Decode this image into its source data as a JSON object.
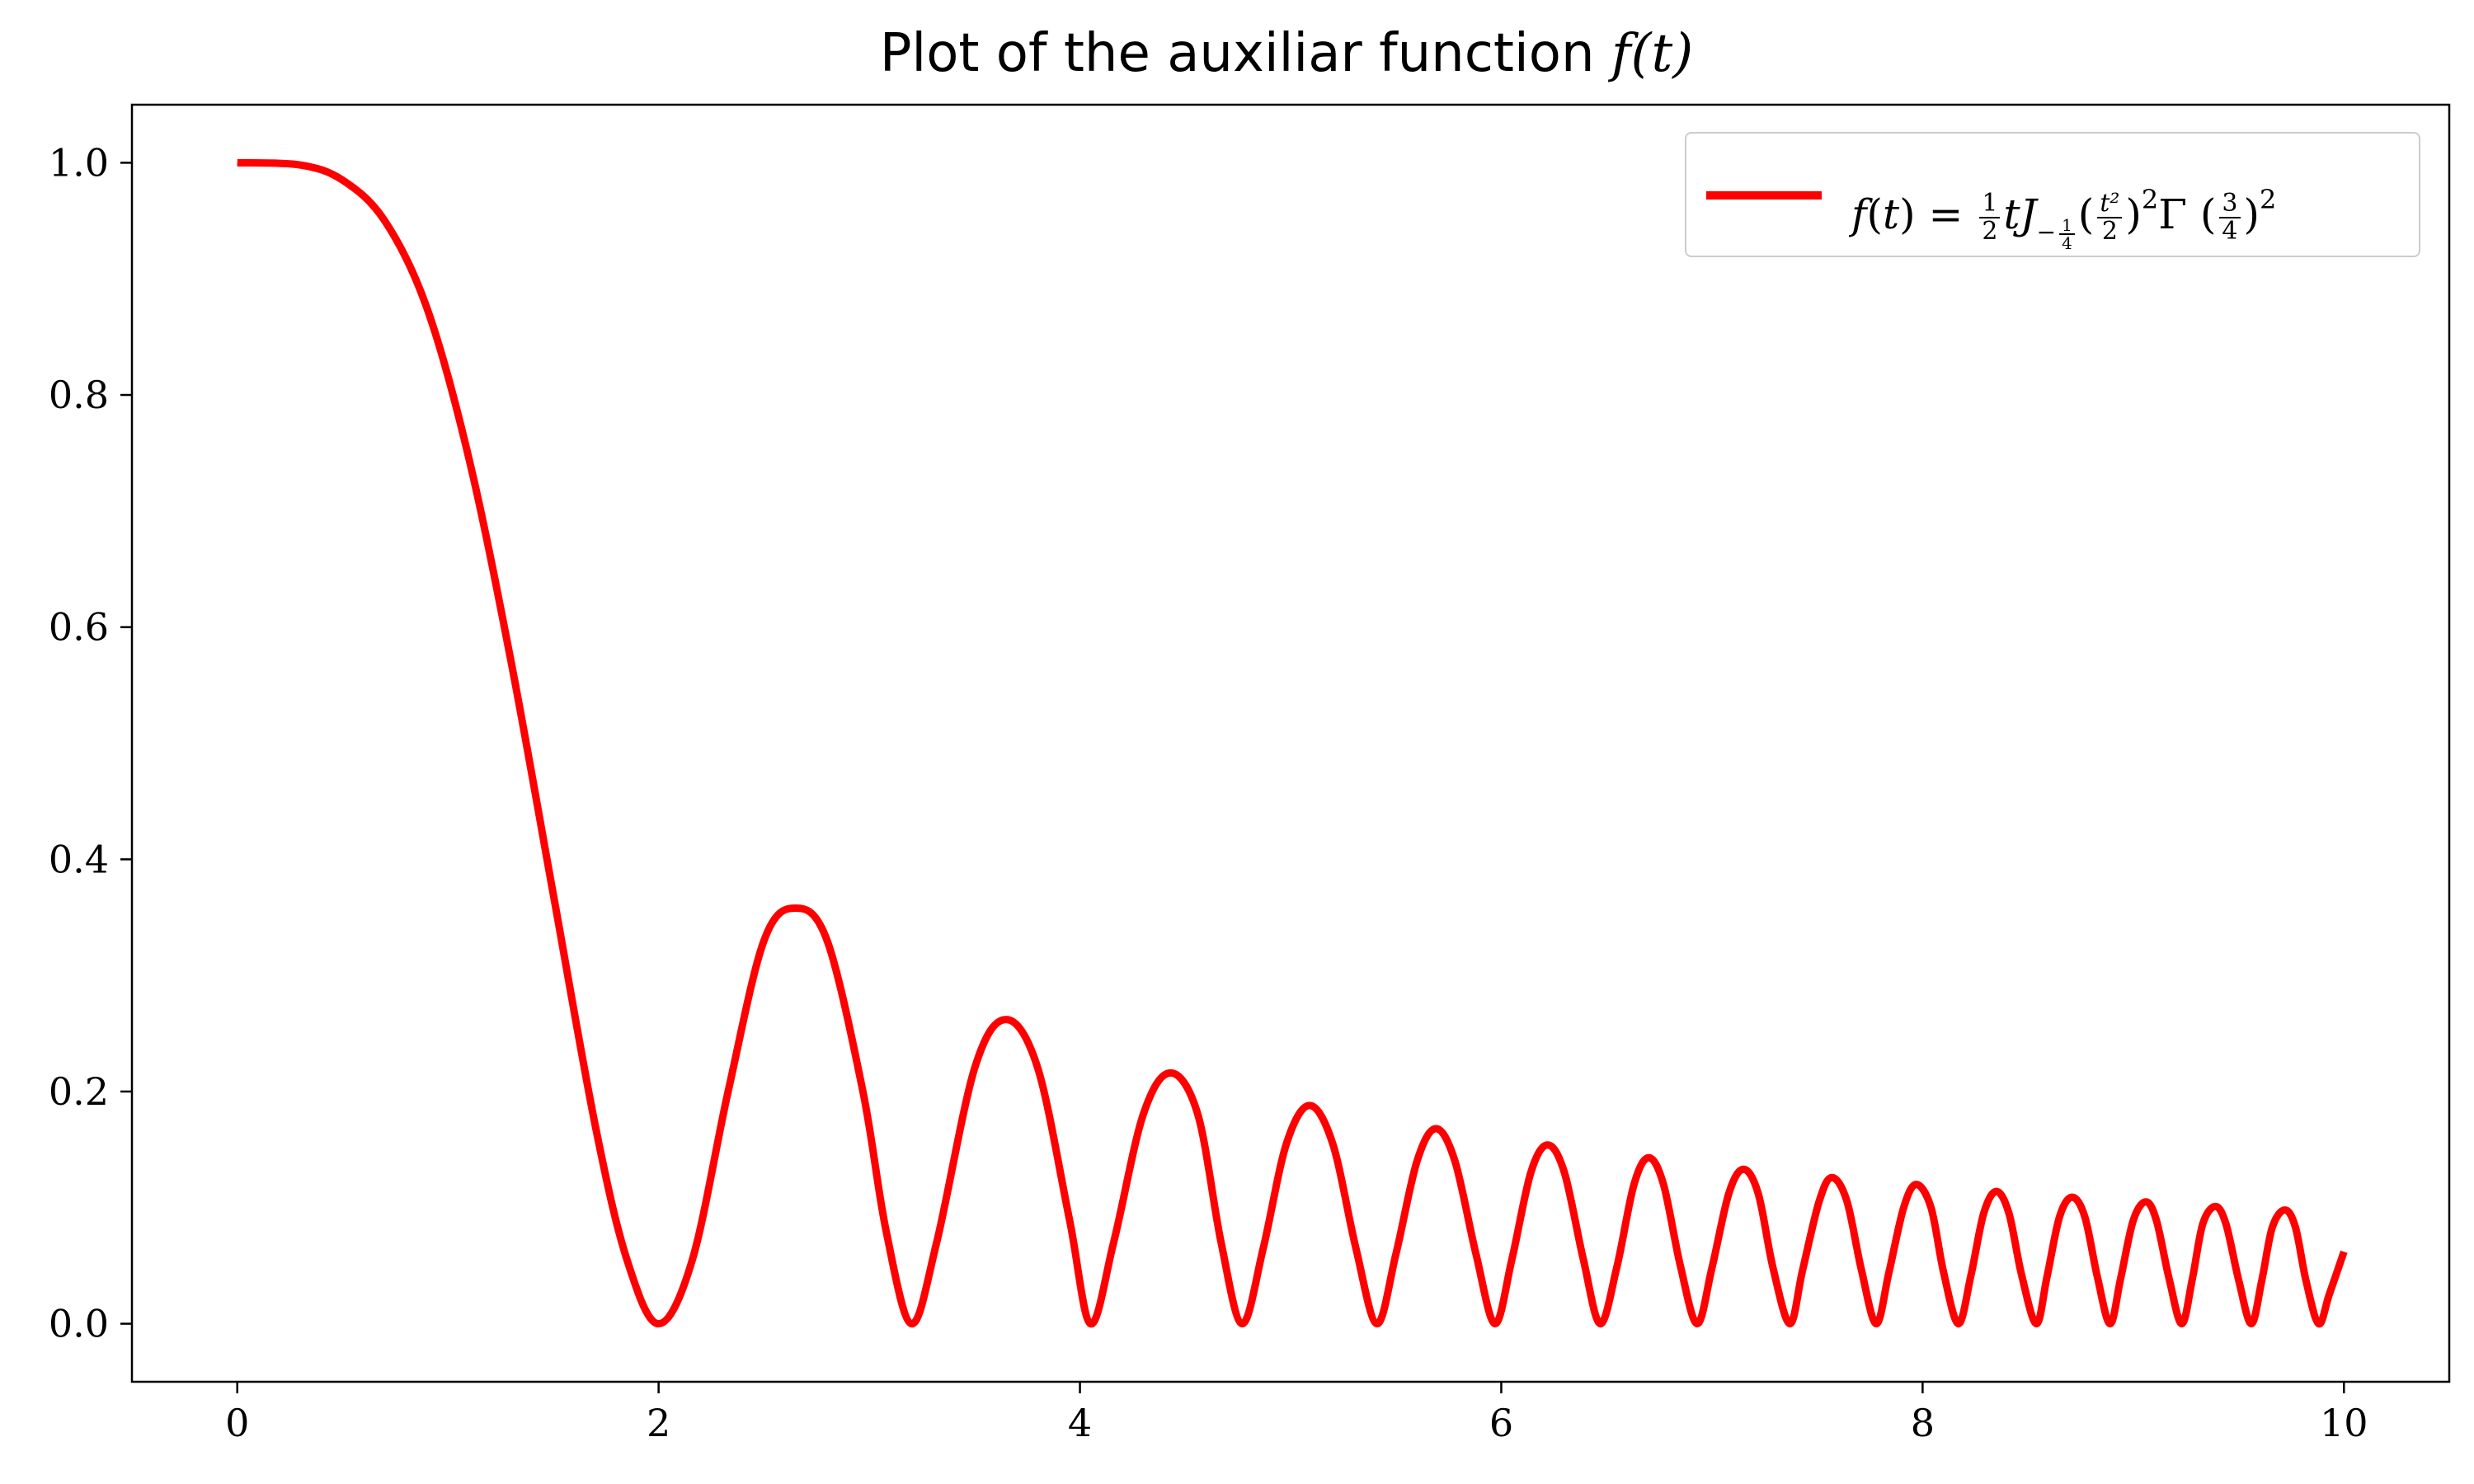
{
  "chart_data": {
    "type": "line",
    "title": "Plot of the auxiliar function",
    "title_math": "f(t)",
    "xlabel": "",
    "ylabel": "",
    "xlim": [
      -0.5,
      10.5
    ],
    "ylim": [
      -0.05,
      1.05
    ],
    "xticks": [
      0,
      2,
      4,
      6,
      8,
      10
    ],
    "xtick_labels": [
      "0",
      "2",
      "4",
      "6",
      "8",
      "10"
    ],
    "yticks": [
      0.0,
      0.2,
      0.4,
      0.6,
      0.8,
      1.0
    ],
    "ytick_labels": [
      "0.0",
      "0.2",
      "0.4",
      "0.6",
      "0.8",
      "1.0"
    ],
    "grid": false,
    "legend_position": "top-right",
    "legend": {
      "f": "f",
      "t": "t",
      "eq": "=",
      "half_num": "1",
      "half_den": "2",
      "J": "J",
      "sub_minus": "−",
      "quarter_num": "1",
      "quarter_den": "4",
      "open_paren": "(",
      "close_paren": ")",
      "t2_num": "t²",
      "t2_den": "2",
      "sq": "2",
      "gamma": "Γ",
      "three_num": "3",
      "four_den": "4"
    },
    "series": [
      {
        "color": "#ff0000",
        "points": [
          [
            0.0,
            1.0
          ],
          [
            0.3,
            0.998
          ],
          [
            0.5,
            0.985
          ],
          [
            0.7,
            0.95
          ],
          [
            0.9,
            0.875
          ],
          [
            1.1,
            0.745
          ],
          [
            1.3,
            0.57
          ],
          [
            1.5,
            0.37
          ],
          [
            1.7,
            0.17
          ],
          [
            1.85,
            0.055
          ],
          [
            2.0,
            0.0
          ],
          [
            2.16,
            0.055
          ],
          [
            2.33,
            0.2
          ],
          [
            2.5,
            0.33
          ],
          [
            2.65,
            0.358
          ],
          [
            2.8,
            0.33
          ],
          [
            2.97,
            0.2
          ],
          [
            3.08,
            0.08
          ],
          [
            3.2,
            0.0
          ],
          [
            3.32,
            0.07
          ],
          [
            3.5,
            0.22
          ],
          [
            3.65,
            0.262
          ],
          [
            3.8,
            0.22
          ],
          [
            3.95,
            0.09
          ],
          [
            4.05,
            0.0
          ],
          [
            4.16,
            0.07
          ],
          [
            4.3,
            0.18
          ],
          [
            4.43,
            0.216
          ],
          [
            4.56,
            0.18
          ],
          [
            4.67,
            0.07
          ],
          [
            4.77,
            0.0
          ],
          [
            4.87,
            0.065
          ],
          [
            4.98,
            0.155
          ],
          [
            5.09,
            0.188
          ],
          [
            5.2,
            0.155
          ],
          [
            5.31,
            0.065
          ],
          [
            5.41,
            0.0
          ],
          [
            5.5,
            0.06
          ],
          [
            5.6,
            0.14
          ],
          [
            5.69,
            0.168
          ],
          [
            5.78,
            0.14
          ],
          [
            5.88,
            0.06
          ],
          [
            5.97,
            0.0
          ],
          [
            6.05,
            0.055
          ],
          [
            6.14,
            0.13
          ],
          [
            6.22,
            0.154
          ],
          [
            6.3,
            0.13
          ],
          [
            6.39,
            0.055
          ],
          [
            6.47,
            0.0
          ],
          [
            6.55,
            0.05
          ],
          [
            6.63,
            0.12
          ],
          [
            6.7,
            0.143
          ],
          [
            6.77,
            0.12
          ],
          [
            6.85,
            0.05
          ],
          [
            6.93,
            0.0
          ],
          [
            7.0,
            0.048
          ],
          [
            7.08,
            0.112
          ],
          [
            7.15,
            0.133
          ],
          [
            7.22,
            0.112
          ],
          [
            7.29,
            0.048
          ],
          [
            7.37,
            0.0
          ],
          [
            7.43,
            0.046
          ],
          [
            7.51,
            0.106
          ],
          [
            7.57,
            0.126
          ],
          [
            7.64,
            0.106
          ],
          [
            7.71,
            0.046
          ],
          [
            7.78,
            0.0
          ],
          [
            7.84,
            0.044
          ],
          [
            7.91,
            0.1
          ],
          [
            7.97,
            0.12
          ],
          [
            8.04,
            0.1
          ],
          [
            8.1,
            0.044
          ],
          [
            8.17,
            0.0
          ],
          [
            8.23,
            0.042
          ],
          [
            8.29,
            0.095
          ],
          [
            8.35,
            0.114
          ],
          [
            8.41,
            0.095
          ],
          [
            8.47,
            0.042
          ],
          [
            8.54,
            0.0
          ],
          [
            8.59,
            0.04
          ],
          [
            8.65,
            0.092
          ],
          [
            8.71,
            0.109
          ],
          [
            8.77,
            0.092
          ],
          [
            8.83,
            0.04
          ],
          [
            8.89,
            0.0
          ],
          [
            8.94,
            0.039
          ],
          [
            9.0,
            0.089
          ],
          [
            9.06,
            0.105
          ],
          [
            9.11,
            0.089
          ],
          [
            9.17,
            0.039
          ],
          [
            9.23,
            0.0
          ],
          [
            9.28,
            0.038
          ],
          [
            9.33,
            0.086
          ],
          [
            9.39,
            0.101
          ],
          [
            9.44,
            0.086
          ],
          [
            9.5,
            0.038
          ],
          [
            9.56,
            0.0
          ],
          [
            9.61,
            0.037
          ],
          [
            9.66,
            0.083
          ],
          [
            9.72,
            0.098
          ],
          [
            9.77,
            0.083
          ],
          [
            9.82,
            0.037
          ],
          [
            9.88,
            0.0
          ],
          [
            9.93,
            0.025
          ],
          [
            10.0,
            0.062
          ]
        ]
      }
    ]
  }
}
